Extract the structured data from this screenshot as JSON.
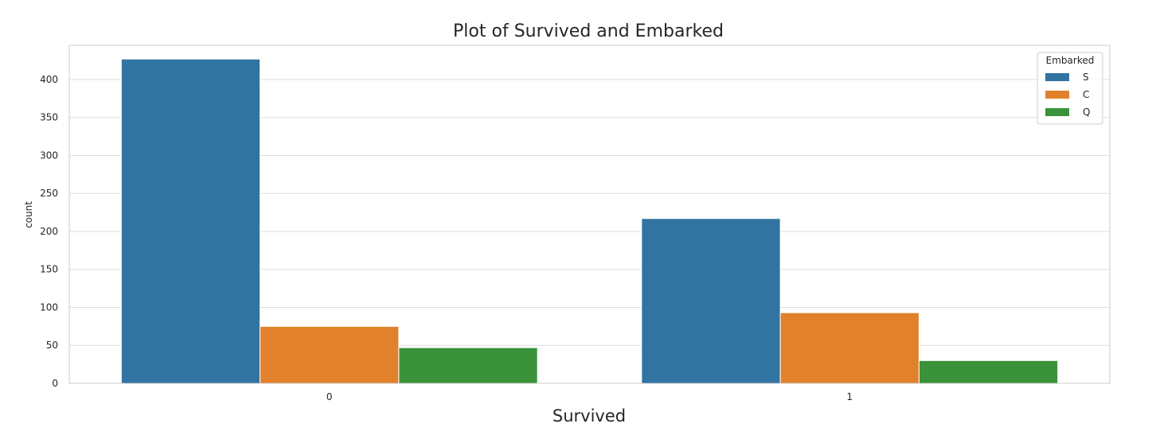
{
  "chart_data": {
    "type": "bar",
    "title": "Plot of Survived and Embarked",
    "xlabel": "Survived",
    "ylabel": "count",
    "categories": [
      "0",
      "1"
    ],
    "ylim": [
      0,
      445
    ],
    "yticks": [
      0,
      50,
      100,
      150,
      200,
      250,
      300,
      350,
      400
    ],
    "grid": true,
    "legend": {
      "title": "Embarked",
      "placement": "top-right"
    },
    "series": [
      {
        "name": "S",
        "color": "#3274a1",
        "values": [
          427,
          217
        ]
      },
      {
        "name": "C",
        "color": "#e1812c",
        "values": [
          75,
          93
        ]
      },
      {
        "name": "Q",
        "color": "#3a923a",
        "values": [
          47,
          30
        ]
      }
    ]
  }
}
